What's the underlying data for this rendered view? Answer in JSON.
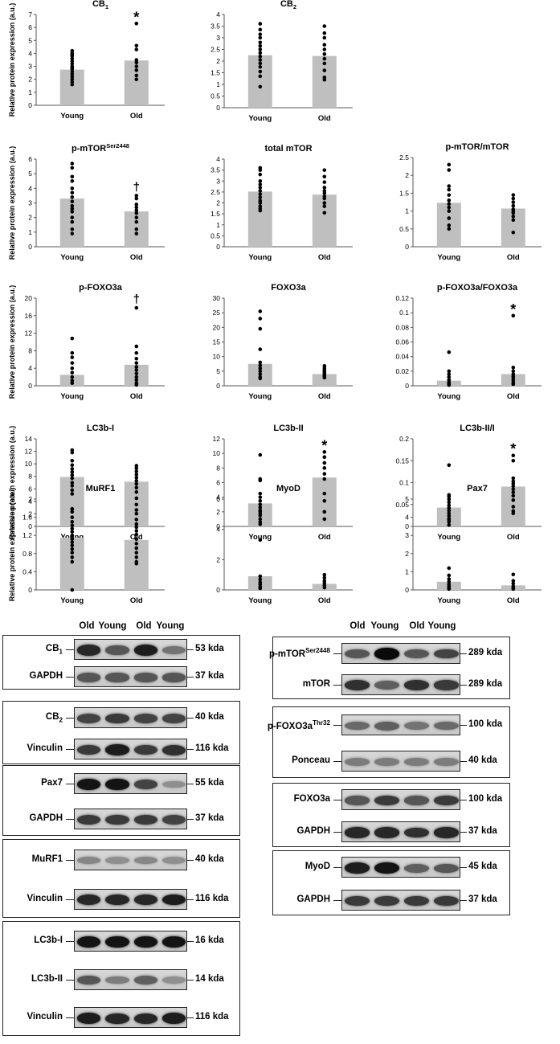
{
  "y_axis_label": "Relative protein expression (a.u.)",
  "chart_data": [
    {
      "type": "bar",
      "title": "CB",
      "title_sub": "1",
      "categories": [
        "Young",
        "Old"
      ],
      "values": [
        2.75,
        3.45
      ],
      "ylim": [
        0,
        7
      ],
      "yticks": [
        0,
        1,
        2,
        3,
        4,
        5,
        6,
        7
      ],
      "tick_fmt": "0",
      "significance": [
        "",
        "*"
      ],
      "points": [
        [
          4.2,
          4.0,
          3.8,
          3.6,
          3.4,
          3.2,
          3.0,
          2.9,
          2.8,
          2.6,
          2.4,
          2.2,
          2.0,
          1.8,
          1.6,
          3.9
        ],
        [
          6.3,
          4.6,
          4.3,
          3.5,
          3.3,
          3.0,
          2.7,
          2.3,
          2.0
        ]
      ]
    },
    {
      "type": "bar",
      "title": "CB",
      "title_sub": "2",
      "categories": [
        "Young",
        "Old"
      ],
      "values": [
        2.25,
        2.22
      ],
      "ylim": [
        0,
        4
      ],
      "yticks": [
        0,
        0.5,
        1,
        1.5,
        2,
        2.5,
        3,
        3.5,
        4
      ],
      "tick_fmt": "auto",
      "significance": [
        "",
        ""
      ],
      "points": [
        [
          3.6,
          3.35,
          3.15,
          3.0,
          2.8,
          2.65,
          2.5,
          2.35,
          2.2,
          2.05,
          1.9,
          1.75,
          1.55,
          1.35,
          0.9
        ],
        [
          3.5,
          3.2,
          3.0,
          2.7,
          2.5,
          2.3,
          2.1,
          1.9,
          1.6,
          1.3,
          1.2
        ]
      ]
    },
    {
      "type": "bar",
      "title": "p-mTOR",
      "title_sup": "Ser2448",
      "categories": [
        "Young",
        "Old"
      ],
      "values": [
        3.3,
        2.42
      ],
      "ylim": [
        0,
        6
      ],
      "yticks": [
        0,
        1,
        2,
        3,
        4,
        5,
        6
      ],
      "tick_fmt": "0",
      "significance": [
        "",
        "†"
      ],
      "points": [
        [
          5.7,
          5.4,
          4.8,
          4.5,
          4.0,
          3.7,
          3.4,
          3.1,
          2.8,
          2.6,
          2.4,
          2.0,
          1.7,
          1.2,
          0.9
        ],
        [
          3.5,
          3.3,
          2.9,
          2.7,
          2.5,
          2.3,
          2.0,
          1.7,
          1.2,
          0.9
        ]
      ]
    },
    {
      "type": "bar",
      "title": "total mTOR",
      "categories": [
        "Young",
        "Old"
      ],
      "values": [
        2.52,
        2.38
      ],
      "ylim": [
        0,
        4
      ],
      "yticks": [
        0,
        0.5,
        1,
        1.5,
        2,
        2.5,
        3,
        3.5,
        4
      ],
      "tick_fmt": "auto",
      "significance": [
        "",
        ""
      ],
      "points": [
        [
          3.6,
          3.5,
          3.3,
          3.0,
          2.85,
          2.7,
          2.55,
          2.4,
          2.25,
          2.1,
          2.0,
          1.85,
          1.75,
          1.65
        ],
        [
          3.5,
          3.2,
          2.95,
          2.7,
          2.55,
          2.45,
          2.3,
          2.2,
          2.0,
          1.85,
          1.55
        ]
      ]
    },
    {
      "type": "bar",
      "title": "p-mTOR/mTOR",
      "categories": [
        "Young",
        "Old"
      ],
      "values": [
        1.23,
        1.07
      ],
      "ylim": [
        0,
        2.5
      ],
      "yticks": [
        0,
        0.5,
        1,
        1.5,
        2,
        2.5
      ],
      "tick_fmt": "auto",
      "significance": [
        "",
        ""
      ],
      "points": [
        [
          2.3,
          2.15,
          1.7,
          1.6,
          1.45,
          1.3,
          1.2,
          1.1,
          1.0,
          0.8,
          0.6,
          0.5
        ],
        [
          1.45,
          1.35,
          1.25,
          1.15,
          1.05,
          1.0,
          0.95,
          0.85,
          0.75,
          0.4
        ]
      ]
    },
    {
      "type": "bar",
      "title": "p-FOXO3a",
      "categories": [
        "Young",
        "Old"
      ],
      "values": [
        2.5,
        4.8
      ],
      "ylim": [
        0,
        20
      ],
      "yticks": [
        0,
        4,
        8,
        12,
        16,
        20
      ],
      "tick_fmt": "0",
      "significance": [
        "",
        "†"
      ],
      "points": [
        [
          10.8,
          7.5,
          6.5,
          5.2,
          4.0,
          3.0,
          2.0,
          1.2,
          0.6
        ],
        [
          17.8,
          9.0,
          7.5,
          6.2,
          5.2,
          4.3,
          3.6,
          2.8,
          2.0,
          1.3,
          0.6,
          0.2
        ]
      ]
    },
    {
      "type": "bar",
      "title": "FOXO3a",
      "categories": [
        "Young",
        "Old"
      ],
      "values": [
        7.5,
        4.0
      ],
      "ylim": [
        0,
        30
      ],
      "yticks": [
        0,
        5,
        10,
        15,
        20,
        25,
        30
      ],
      "tick_fmt": "0",
      "significance": [
        "",
        ""
      ],
      "points": [
        [
          25.5,
          23.0,
          19.5,
          12.5,
          8.0,
          7.0,
          6.0,
          5.0,
          4.0,
          3.0,
          2.5
        ],
        [
          6.8,
          6.0,
          5.3,
          4.8,
          4.3,
          3.8,
          3.3,
          2.8
        ]
      ]
    },
    {
      "type": "bar",
      "title": "p-FOXO3a/FOXO3a",
      "categories": [
        "Young",
        "Old"
      ],
      "values": [
        0.007,
        0.016
      ],
      "ylim": [
        0,
        0.12
      ],
      "yticks": [
        0,
        0.02,
        0.04,
        0.06,
        0.08,
        0.1,
        0.12
      ],
      "tick_fmt": "auto",
      "significance": [
        "",
        "*"
      ],
      "points": [
        [
          0.046,
          0.02,
          0.016,
          0.012,
          0.008,
          0.005,
          0.003,
          0.002,
          0.001
        ],
        [
          0.096,
          0.025,
          0.02,
          0.016,
          0.013,
          0.01,
          0.007,
          0.004,
          0.002
        ]
      ]
    },
    {
      "type": "bar",
      "title": "LC3b-I",
      "categories": [
        "Young",
        "Old"
      ],
      "values": [
        7.9,
        7.15
      ],
      "ylim": [
        0,
        14
      ],
      "yticks": [
        0,
        2,
        4,
        6,
        8,
        10,
        12,
        14
      ],
      "tick_fmt": "0",
      "significance": [
        "",
        ""
      ],
      "points": [
        [
          12.2,
          11.8,
          10.5,
          9.8,
          9.2,
          8.7,
          8.2,
          7.7,
          7.0,
          6.5,
          5.8,
          5.2,
          2.8
        ],
        [
          9.7,
          9.3,
          8.8,
          8.3,
          7.8,
          7.3,
          6.8,
          6.2,
          5.5,
          4.5,
          3.5
        ]
      ]
    },
    {
      "type": "bar",
      "title": "LC3b-II",
      "categories": [
        "Young",
        "Old"
      ],
      "values": [
        3.15,
        6.7
      ],
      "ylim": [
        0,
        12
      ],
      "yticks": [
        0,
        2,
        4,
        6,
        8,
        10,
        12
      ],
      "tick_fmt": "0",
      "significance": [
        "",
        "*"
      ],
      "points": [
        [
          9.8,
          6.5,
          6.3,
          4.5,
          4.0,
          3.5,
          3.0,
          2.6,
          2.2,
          1.8,
          1.5,
          1.0,
          0.6,
          0.3
        ],
        [
          10.2,
          9.5,
          8.7,
          8.0,
          7.2,
          6.5,
          4.5,
          3.5,
          2.0,
          1.0
        ]
      ]
    },
    {
      "type": "bar",
      "title": "LC3b-II/I",
      "categories": [
        "Young",
        "Old"
      ],
      "values": [
        0.043,
        0.091
      ],
      "ylim": [
        0,
        0.2
      ],
      "yticks": [
        0,
        0.05,
        0.1,
        0.15,
        0.2
      ],
      "tick_fmt": "auto",
      "significance": [
        "",
        "*"
      ],
      "points": [
        [
          0.14,
          0.072,
          0.068,
          0.062,
          0.055,
          0.048,
          0.042,
          0.036,
          0.03,
          0.024,
          0.018,
          0.01,
          0.003
        ],
        [
          0.162,
          0.15,
          0.11,
          0.103,
          0.098,
          0.092,
          0.085,
          0.078,
          0.07,
          0.06,
          0.045,
          0.035,
          0.03
        ]
      ]
    },
    {
      "type": "bar",
      "title": "MuRF1",
      "categories": [
        "Young",
        "Old"
      ],
      "values": [
        1.15,
        1.1
      ],
      "ylim": [
        0,
        2
      ],
      "yticks": [
        0,
        0.4,
        0.8,
        1.2,
        1.6,
        2
      ],
      "tick_fmt": "auto",
      "significance": [
        "",
        ""
      ],
      "points": [
        [
          1.78,
          1.72,
          1.6,
          1.5,
          1.42,
          1.35,
          1.28,
          1.2,
          1.12,
          1.05,
          0.98,
          0.9,
          0.82,
          0.72,
          0.62,
          0.0
        ],
        [
          1.76,
          1.68,
          1.55,
          1.45,
          1.38,
          1.3,
          1.22,
          1.12,
          1.02,
          0.92,
          0.82,
          0.72,
          0.62,
          0.58
        ]
      ]
    },
    {
      "type": "bar",
      "title": "MyoD",
      "categories": [
        "Young",
        "Old"
      ],
      "values": [
        0.9,
        0.4
      ],
      "ylim": [
        0,
        6
      ],
      "yticks": [
        0,
        2,
        4,
        6
      ],
      "tick_fmt": "0",
      "significance": [
        "",
        ""
      ],
      "points": [
        [
          5.2,
          3.3,
          0.9,
          0.7,
          0.5,
          0.35,
          0.2,
          0.1
        ],
        [
          1.0,
          0.8,
          0.6,
          0.45,
          0.3,
          0.15
        ]
      ]
    },
    {
      "type": "bar",
      "title": "Pax7",
      "categories": [
        "Young",
        "Old"
      ],
      "values": [
        0.45,
        0.25
      ],
      "ylim": [
        0,
        5
      ],
      "yticks": [
        0,
        1,
        2,
        3,
        4,
        5
      ],
      "tick_fmt": "0",
      "significance": [
        "",
        ""
      ],
      "points": [
        [
          3.85,
          1.2,
          0.8,
          0.6,
          0.45,
          0.3,
          0.2,
          0.1,
          0.05
        ],
        [
          0.85,
          0.5,
          0.35,
          0.2,
          0.1,
          0.05
        ]
      ]
    }
  ],
  "blots": {
    "left_headers": [
      "Old",
      "Young",
      "Old",
      "Young"
    ],
    "right_headers": [
      "Old",
      "Young",
      "Old",
      "Young"
    ],
    "groups": [
      {
        "side": "left",
        "rows": [
          {
            "label": "CB",
            "label_sub": "1",
            "kda": "53 kda",
            "bands": [
              0.85,
              0.6,
              0.9,
              0.45
            ]
          },
          {
            "label": "GAPDH",
            "kda": "37 kda",
            "bands": [
              0.6,
              0.6,
              0.6,
              0.6
            ]
          }
        ]
      },
      {
        "side": "left",
        "rows": [
          {
            "label": "CB",
            "label_sub": "2",
            "kda": "40 kda",
            "bands": [
              0.7,
              0.75,
              0.7,
              0.7
            ]
          },
          {
            "label": "Vinculin",
            "kda": "116 kda",
            "bands": [
              0.75,
              0.9,
              0.75,
              0.8
            ]
          }
        ]
      },
      {
        "side": "left",
        "rows": [
          {
            "label": "Pax7",
            "kda": "55 kda",
            "bands": [
              0.95,
              0.95,
              0.7,
              0.3
            ]
          },
          {
            "label": "GAPDH",
            "kda": "37 kda",
            "bands": [
              0.75,
              0.75,
              0.75,
              0.7
            ]
          }
        ]
      },
      {
        "side": "left",
        "rows": [
          {
            "label": "MuRF1",
            "kda": "40 kda",
            "bands": [
              0.35,
              0.3,
              0.35,
              0.3
            ]
          },
          {
            "label": "Vinculin",
            "kda": "116 kda",
            "bands": [
              0.85,
              0.85,
              0.85,
              0.9
            ]
          }
        ]
      },
      {
        "side": "left",
        "rows": [
          {
            "label": "LC3b-I",
            "kda": "16 kda",
            "bands": [
              0.95,
              0.95,
              0.95,
              0.95
            ]
          },
          {
            "label": "LC3b-II",
            "kda": "14 kda",
            "bands": [
              0.6,
              0.4,
              0.55,
              0.3
            ]
          },
          {
            "label": "Vinculin",
            "kda": "116 kda",
            "bands": [
              0.9,
              0.85,
              0.85,
              0.9
            ]
          }
        ]
      },
      {
        "side": "right",
        "rows": [
          {
            "label": "p-mTOR",
            "label_sup": "Ser2448",
            "kda": "289 kda",
            "bands": [
              0.6,
              1.0,
              0.6,
              0.7
            ]
          },
          {
            "label": "mTOR",
            "kda": "289 kda",
            "bands": [
              0.8,
              0.55,
              0.8,
              0.75
            ]
          }
        ]
      },
      {
        "side": "right",
        "rows": [
          {
            "label": "p-FOXO3a",
            "label_sup": "Thr32",
            "kda": "100 kda",
            "bands": [
              0.5,
              0.55,
              0.45,
              0.5
            ]
          },
          {
            "label": "Ponceau",
            "kda": "40 kda",
            "bands": [
              0.4,
              0.4,
              0.4,
              0.4
            ]
          }
        ]
      },
      {
        "side": "right",
        "rows": [
          {
            "label": "FOXO3a",
            "kda": "100 kda",
            "bands": [
              0.6,
              0.75,
              0.6,
              0.75
            ]
          },
          {
            "label": "GAPDH",
            "kda": "37 kda",
            "bands": [
              0.85,
              0.85,
              0.8,
              0.85
            ]
          }
        ]
      },
      {
        "side": "right",
        "rows": [
          {
            "label": "MyoD",
            "kda": "45 kda",
            "bands": [
              0.9,
              0.95,
              0.55,
              0.6
            ]
          },
          {
            "label": "GAPDH",
            "kda": "37 kda",
            "bands": [
              0.75,
              0.75,
              0.75,
              0.75
            ]
          }
        ]
      }
    ]
  }
}
